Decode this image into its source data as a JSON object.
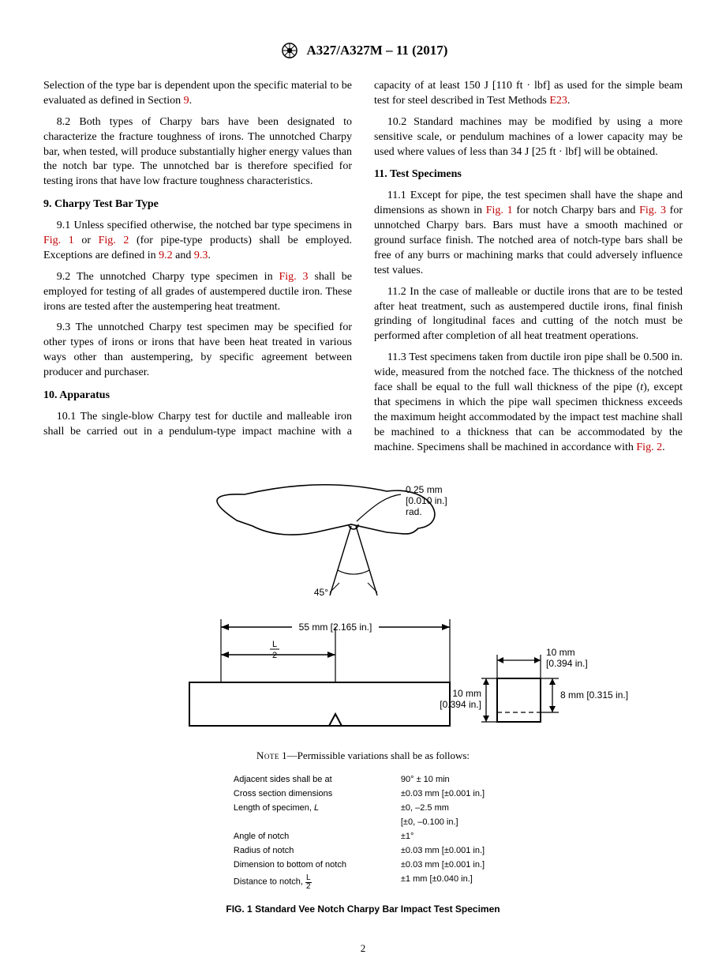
{
  "header": {
    "designation": "A327/A327M – 11 (2017)"
  },
  "col": {
    "intro": "Selection of the type bar is dependent upon the specific material to be evaluated as defined in Section ",
    "intro_ref": "9",
    "intro_end": ".",
    "p8_2": "8.2 Both types of Charpy bars have been designated to characterize the fracture toughness of irons. The unnotched Charpy bar, when tested, will produce substantially higher energy values than the notch bar type. The unnotched bar is therefore specified for testing irons that have low fracture toughness characteristics.",
    "h9": "9.  Charpy Test Bar Type",
    "p9_1a": "9.1 Unless specified otherwise, the notched bar type specimens in ",
    "p9_1_fig1": "Fig. 1",
    "p9_1b": " or ",
    "p9_1_fig2": "Fig. 2",
    "p9_1c": " (for pipe-type products) shall be employed. Exceptions are defined in ",
    "p9_1_92": "9.2",
    "p9_1d": " and ",
    "p9_1_93": "9.3",
    "p9_1e": ".",
    "p9_2a": "9.2 The unnotched Charpy type specimen in ",
    "p9_2_fig3": "Fig. 3",
    "p9_2b": " shall be employed for testing of all grades of austempered ductile iron. These irons are tested after the austempering heat treatment.",
    "p9_3": "9.3 The unnotched Charpy test specimen may be specified for other types of irons or irons that have been heat treated in various ways other than austempering, by specific agreement between producer and purchaser.",
    "h10": "10.  Apparatus",
    "p10_1a": "10.1 The single-blow Charpy test for ductile and malleable iron shall be carried out in a pendulum-type impact machine with a capacity of at least 150 J [110 ft · lbf] as used for the simple beam test for steel described in Test Methods ",
    "p10_1_e23": "E23",
    "p10_1b": ".",
    "p10_2": "10.2 Standard machines may be modified by using a more sensitive scale, or pendulum machines of a lower capacity may be used where values of less than 34 J [25 ft · lbf] will be obtained.",
    "h11": "11.  Test Specimens",
    "p11_1a": "11.1 Except for pipe, the test specimen shall have the shape and dimensions as shown in ",
    "p11_1_fig1": "Fig. 1",
    "p11_1b": " for notch Charpy bars and ",
    "p11_1_fig3": "Fig. 3",
    "p11_1c": " for unnotched Charpy bars. Bars must have a smooth machined or ground surface finish. The notched area of notch-type bars shall be free of any burrs or machining marks that could adversely influence test values.",
    "p11_2": "11.2 In the case of malleable or ductile irons that are to be tested after heat treatment, such as austempered ductile irons, final finish grinding of longitudinal faces and cutting of the notch must be performed after completion of all heat treatment operations.",
    "p11_3a": "11.3 Test specimens taken from ductile iron pipe shall be 0.500 in. wide, measured from the notched face. The thickness of the notched face shall be equal to the full wall thickness of the pipe (",
    "p11_3_t": "t",
    "p11_3b": "), except that specimens in which the pipe wall specimen thickness exceeds the maximum height accommodated by the impact test machine shall be machined to a thickness that can be accommodated by the machine. Specimens shall be machined in accordance with ",
    "p11_3_fig2": "Fig. 2",
    "p11_3c": "."
  },
  "figure": {
    "note_small": "Note",
    "note_rest": " 1—Permissible variations shall be as follows:",
    "caption": "FIG. 1  Standard Vee Notch Charpy Bar Impact Test Specimen",
    "labels": {
      "rad1": "0.25 mm",
      "rad2": "[0.010 in.]",
      "rad3": "rad.",
      "angle": "45°",
      "span": "55 mm [2.165 in.]",
      "L": "L",
      "two": "2",
      "ten_a": "10 mm",
      "ten_b": "[0.394 in.]",
      "eight": "8 mm [0.315 in.]"
    },
    "tol": [
      [
        "Adjacent sides shall be at",
        "90° ± 10 min"
      ],
      [
        "Cross section dimensions",
        "±0.03 mm [±0.001 in.]"
      ],
      [
        "Length of specimen, <i>L</i>",
        "±0, –2.5 mm"
      ],
      [
        "",
        "[±0, –0.100 in.]"
      ],
      [
        "Angle of notch",
        "±1°"
      ],
      [
        "Radius of notch",
        "±0.03 mm [±0.001 in.]"
      ],
      [
        "Dimension to bottom of notch",
        "±0.03 mm [±0.001 in.]"
      ],
      [
        "Distance to notch, {L2}",
        "±1 mm [±0.040 in.]"
      ]
    ]
  },
  "page_number": "2"
}
